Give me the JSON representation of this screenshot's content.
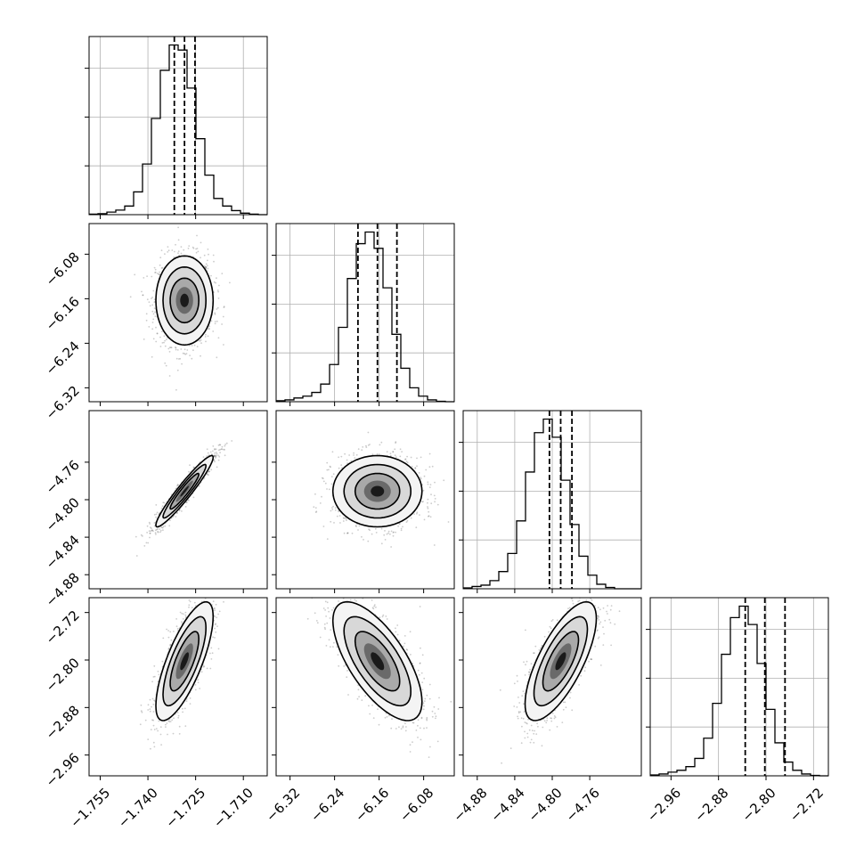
{
  "chart_data": {
    "type": "corner",
    "grid": true,
    "quantile_lines": "dashed",
    "parameters": [
      {
        "range": [
          -1.7585,
          -1.7025
        ],
        "ticks": [
          -1.755,
          -1.74,
          -1.725,
          -1.71
        ],
        "tick_labels": [
          "−1.755",
          "−1.740",
          "−1.725",
          "−1.710"
        ],
        "quantiles": [
          -1.7317,
          -1.7285,
          -1.7252
        ],
        "hist_edges": [
          -1.7585,
          -1.7557,
          -1.7529,
          -1.7501,
          -1.7473,
          -1.7445,
          -1.7417,
          -1.7389,
          -1.7361,
          -1.7333,
          -1.7305,
          -1.7277,
          -1.7249,
          -1.7221,
          -1.7193,
          -1.7165,
          -1.7137,
          -1.7109,
          -1.7081,
          -1.7053,
          -1.7025
        ],
        "hist_counts": [
          1,
          2,
          5,
          9,
          17,
          45,
          100,
          190,
          285,
          335,
          325,
          250,
          150,
          78,
          32,
          17,
          8,
          3,
          1,
          0
        ]
      },
      {
        "range": [
          -6.345,
          -6.025
        ],
        "ticks": [
          -6.32,
          -6.24,
          -6.16,
          -6.08
        ],
        "tick_labels": [
          "−6.32",
          "−6.24",
          "−6.16",
          "−6.08"
        ],
        "quantiles": [
          -6.198,
          -6.163,
          -6.128
        ],
        "hist_edges": [
          -6.345,
          -6.329,
          -6.313,
          -6.297,
          -6.281,
          -6.265,
          -6.249,
          -6.233,
          -6.217,
          -6.201,
          -6.185,
          -6.169,
          -6.153,
          -6.137,
          -6.121,
          -6.105,
          -6.089,
          -6.073,
          -6.057,
          -6.041,
          -6.025
        ],
        "hist_counts": [
          2,
          4,
          8,
          12,
          20,
          38,
          80,
          160,
          265,
          340,
          365,
          330,
          245,
          145,
          72,
          30,
          12,
          4,
          1,
          0
        ]
      },
      {
        "range": [
          -4.895,
          -4.705
        ],
        "ticks": [
          -4.88,
          -4.84,
          -4.8,
          -4.76
        ],
        "tick_labels": [
          "−4.88",
          "−4.84",
          "−4.80",
          "−4.76"
        ],
        "quantiles": [
          -4.803,
          -4.791,
          -4.779
        ],
        "hist_edges": [
          -4.895,
          -4.8855,
          -4.876,
          -4.8665,
          -4.857,
          -4.8475,
          -4.838,
          -4.8285,
          -4.819,
          -4.8095,
          -4.8,
          -4.7905,
          -4.781,
          -4.7715,
          -4.762,
          -4.7525,
          -4.743,
          -4.7335,
          -4.724,
          -4.7145,
          -4.705
        ],
        "hist_counts": [
          2,
          5,
          8,
          18,
          38,
          78,
          150,
          258,
          345,
          375,
          335,
          240,
          142,
          72,
          30,
          10,
          3,
          0,
          0,
          0
        ]
      },
      {
        "range": [
          -2.995,
          -2.695
        ],
        "ticks": [
          -2.96,
          -2.88,
          -2.8,
          -2.72
        ],
        "tick_labels": [
          "−2.96",
          "−2.88",
          "−2.80",
          "−2.72"
        ],
        "quantiles": [
          -2.835,
          -2.802,
          -2.768
        ],
        "hist_edges": [
          -2.995,
          -2.98,
          -2.965,
          -2.95,
          -2.935,
          -2.92,
          -2.905,
          -2.89,
          -2.875,
          -2.86,
          -2.845,
          -2.83,
          -2.815,
          -2.8,
          -2.785,
          -2.77,
          -2.755,
          -2.74,
          -2.725,
          -2.71,
          -2.695
        ],
        "hist_counts": [
          2,
          4,
          8,
          12,
          20,
          38,
          82,
          158,
          265,
          345,
          370,
          330,
          245,
          145,
          72,
          30,
          12,
          4,
          1,
          0
        ]
      }
    ],
    "pairs": [
      {
        "x_param": 0,
        "y_param": 1,
        "center": [
          -1.7285,
          -6.163
        ],
        "sigma": [
          0.0045,
          0.04
        ],
        "rho": 0.0
      },
      {
        "x_param": 0,
        "y_param": 2,
        "center": [
          -1.7285,
          -4.791
        ],
        "sigma": [
          0.0045,
          0.019
        ],
        "rho": 0.95
      },
      {
        "x_param": 1,
        "y_param": 2,
        "center": [
          -6.163,
          -4.791
        ],
        "sigma": [
          0.04,
          0.019
        ],
        "rho": 0.0
      },
      {
        "x_param": 0,
        "y_param": 3,
        "center": [
          -1.7285,
          -2.802
        ],
        "sigma": [
          0.0045,
          0.05
        ],
        "rho": 0.75
      },
      {
        "x_param": 1,
        "y_param": 3,
        "center": [
          -6.163,
          -2.802
        ],
        "sigma": [
          0.04,
          0.05
        ],
        "rho": -0.68
      },
      {
        "x_param": 2,
        "y_param": 3,
        "center": [
          -4.791,
          -2.802
        ],
        "sigma": [
          0.019,
          0.05
        ],
        "rho": 0.72
      }
    ]
  }
}
